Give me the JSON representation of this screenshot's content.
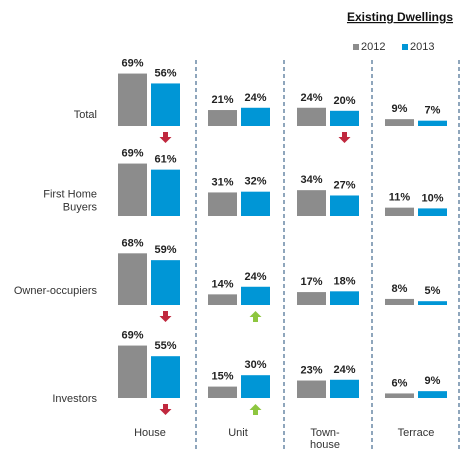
{
  "chart_data": {
    "type": "bar",
    "title": "Existing Dwellings",
    "legend": {
      "placement": "top-right"
    },
    "series": [
      {
        "name": "2012",
        "color": "#8c8c8c"
      },
      {
        "name": "2013",
        "color": "#0096d6"
      }
    ],
    "columns": [
      "House",
      "Unit",
      "Town-house",
      "Terrace"
    ],
    "column_label_lines": [
      [
        "House"
      ],
      [
        "Unit"
      ],
      [
        "Town-",
        "house"
      ],
      [
        "Terrace"
      ]
    ],
    "rows": [
      "Total",
      "First Home Buyers",
      "Owner-occupiers",
      "Investors"
    ],
    "row_label_lines": [
      [
        "Total"
      ],
      [
        "First Home",
        "Buyers"
      ],
      [
        "Owner-occupiers"
      ],
      [
        "Investors"
      ]
    ],
    "values": [
      [
        [
          69,
          56
        ],
        [
          21,
          24
        ],
        [
          24,
          20
        ],
        [
          9,
          7
        ]
      ],
      [
        [
          69,
          61
        ],
        [
          31,
          32
        ],
        [
          34,
          27
        ],
        [
          11,
          10
        ]
      ],
      [
        [
          68,
          59
        ],
        [
          14,
          24
        ],
        [
          17,
          18
        ],
        [
          8,
          5
        ]
      ],
      [
        [
          69,
          55
        ],
        [
          15,
          30
        ],
        [
          23,
          24
        ],
        [
          6,
          9
        ]
      ]
    ],
    "value_suffix": "%",
    "change_indicators": [
      {
        "row": 0,
        "col": 0,
        "direction": "down",
        "color": "#c0283e"
      },
      {
        "row": 0,
        "col": 2,
        "direction": "down",
        "color": "#c0283e"
      },
      {
        "row": 2,
        "col": 0,
        "direction": "down",
        "color": "#c0283e"
      },
      {
        "row": 2,
        "col": 1,
        "direction": "up",
        "color": "#8dc63f"
      },
      {
        "row": 3,
        "col": 0,
        "direction": "down",
        "color": "#c0283e"
      },
      {
        "row": 3,
        "col": 1,
        "direction": "up",
        "color": "#8dc63f"
      }
    ],
    "ylim": [
      0,
      69
    ],
    "grid": false,
    "separator_color": "#1f4e79"
  }
}
